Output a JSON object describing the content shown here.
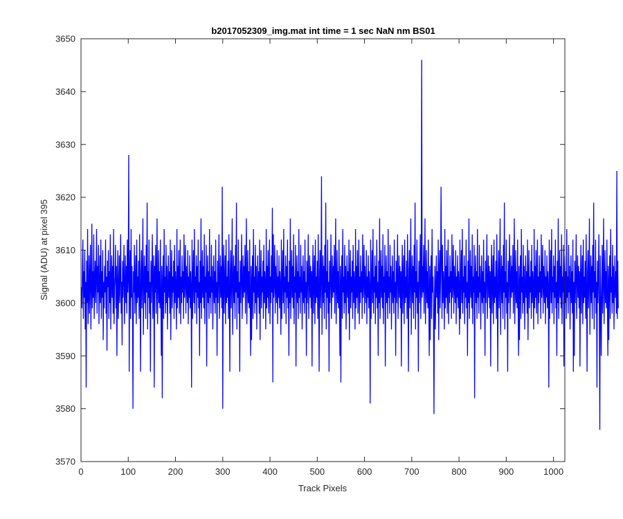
{
  "chart_data": {
    "type": "line",
    "title": "b2017052309_img.mat int time = 1 sec  NaN nm BS01",
    "xlabel": "Track Pixels",
    "ylabel": "Signal (ADU) at pixel 395",
    "xlim": [
      0,
      1024
    ],
    "ylim": [
      3570,
      3650
    ],
    "xticks": [
      0,
      100,
      200,
      300,
      400,
      500,
      600,
      700,
      800,
      900,
      1000
    ],
    "yticks": [
      3570,
      3580,
      3590,
      3600,
      3610,
      3620,
      3630,
      3640,
      3650
    ],
    "xtick_labels": [
      "0",
      "100",
      "200",
      "300",
      "400",
      "500",
      "600",
      "700",
      "800",
      "900",
      "1000"
    ],
    "ytick_labels": [
      "3570",
      "3580",
      "3590",
      "3600",
      "3610",
      "3620",
      "3630",
      "3640",
      "3650"
    ],
    "grid": false,
    "box": true,
    "series": [
      {
        "color": "#0000ff",
        "x_start": 1,
        "x_step": 1,
        "values": [
          3603,
          3599,
          3607,
          3612,
          3597,
          3606,
          3601,
          3610,
          3595,
          3604,
          3584,
          3608,
          3600,
          3614,
          3596,
          3602,
          3609,
          3598,
          3605,
          3611,
          3595,
          3603,
          3615,
          3599,
          3606,
          3601,
          3613,
          3597,
          3604,
          3608,
          3600,
          3605,
          3614,
          3598,
          3607,
          3602,
          3611,
          3596,
          3603,
          3609,
          3600,
          3612,
          3597,
          3606,
          3601,
          3610,
          3593,
          3604,
          3599,
          3607,
          3602,
          3612,
          3598,
          3605,
          3591,
          3608,
          3603,
          3610,
          3597,
          3606,
          3600,
          3613,
          3595,
          3604,
          3609,
          3601,
          3607,
          3598,
          3614,
          3596,
          3603,
          3605,
          3611,
          3599,
          3607,
          3590,
          3604,
          3610,
          3597,
          3602,
          3609,
          3600,
          3606,
          3613,
          3598,
          3604,
          3592,
          3608,
          3601,
          3605,
          3611,
          3596,
          3603,
          3609,
          3600,
          3607,
          3598,
          3612,
          3602,
          3605,
          3628,
          3587,
          3604,
          3610,
          3597,
          3614,
          3601,
          3607,
          3599,
          3580,
          3606,
          3602,
          3611,
          3598,
          3604,
          3609,
          3596,
          3612,
          3600,
          3605,
          3601,
          3608,
          3597,
          3613,
          3603,
          3587,
          3606,
          3610,
          3599,
          3605,
          3616,
          3594,
          3603,
          3609,
          3600,
          3607,
          3597,
          3611,
          3602,
          3619,
          3595,
          3606,
          3601,
          3612,
          3598,
          3604,
          3587,
          3608,
          3600,
          3605,
          3613,
          3597,
          3603,
          3609,
          3584,
          3607,
          3602,
          3611,
          3598,
          3605,
          3616,
          3596,
          3603,
          3610,
          3600,
          3606,
          3599,
          3612,
          3601,
          3590,
          3607,
          3582,
          3604,
          3609,
          3597,
          3614,
          3602,
          3605,
          3598,
          3611,
          3600,
          3607,
          3595,
          3603,
          3609,
          3601,
          3606,
          3598,
          3612,
          3593,
          3604,
          3610,
          3599,
          3605,
          3602,
          3608,
          3597,
          3611,
          3600,
          3606,
          3603,
          3595,
          3614,
          3599,
          3607,
          3601,
          3610,
          3598,
          3604,
          3612,
          3596,
          3605,
          3600,
          3609,
          3602,
          3606,
          3597,
          3613,
          3601,
          3604,
          3611,
          3598,
          3607,
          3603,
          3600,
          3610,
          3596,
          3605,
          3601,
          3609,
          3599,
          3606,
          3603,
          3584,
          3612,
          3597,
          3604,
          3610,
          3600,
          3614,
          3598,
          3605,
          3602,
          3609,
          3596,
          3607,
          3601,
          3612,
          3599,
          3604,
          3590,
          3608,
          3600,
          3616,
          3597,
          3603,
          3610,
          3601,
          3607,
          3599,
          3613,
          3596,
          3605,
          3602,
          3611,
          3588,
          3604,
          3609,
          3600,
          3606,
          3597,
          3614,
          3601,
          3605,
          3598,
          3611,
          3602,
          3607,
          3595,
          3603,
          3609,
          3600,
          3606,
          3598,
          3612,
          3601,
          3604,
          3590,
          3608,
          3600,
          3605,
          3613,
          3597,
          3603,
          3609,
          3601,
          3607,
          3599,
          3622,
          3580,
          3605,
          3611,
          3598,
          3604,
          3609,
          3596,
          3612,
          3600,
          3605,
          3601,
          3608,
          3597,
          3613,
          3603,
          3587,
          3606,
          3610,
          3599,
          3605,
          3616,
          3594,
          3603,
          3609,
          3600,
          3607,
          3597,
          3611,
          3602,
          3619,
          3595,
          3606,
          3601,
          3612,
          3598,
          3604,
          3587,
          3608,
          3600,
          3605,
          3613,
          3597,
          3603,
          3609,
          3601,
          3607,
          3602,
          3611,
          3598,
          3605,
          3616,
          3596,
          3603,
          3610,
          3600,
          3606,
          3599,
          3612,
          3601,
          3590,
          3607,
          3593,
          3604,
          3609,
          3597,
          3614,
          3602,
          3605,
          3598,
          3611,
          3600,
          3607,
          3595,
          3603,
          3609,
          3601,
          3606,
          3598,
          3612,
          3593,
          3604,
          3610,
          3599,
          3605,
          3602,
          3608,
          3597,
          3611,
          3600,
          3606,
          3603,
          3595,
          3614,
          3599,
          3607,
          3601,
          3610,
          3598,
          3604,
          3612,
          3596,
          3605,
          3600,
          3609,
          3602,
          3618,
          3585,
          3613,
          3601,
          3604,
          3611,
          3598,
          3607,
          3603,
          3600,
          3610,
          3596,
          3605,
          3601,
          3609,
          3599,
          3606,
          3603,
          3594,
          3612,
          3597,
          3604,
          3610,
          3600,
          3614,
          3598,
          3605,
          3602,
          3609,
          3596,
          3607,
          3601,
          3612,
          3599,
          3604,
          3590,
          3608,
          3600,
          3616,
          3597,
          3603,
          3610,
          3601,
          3607,
          3599,
          3613,
          3596,
          3605,
          3602,
          3611,
          3588,
          3604,
          3609,
          3600,
          3606,
          3597,
          3614,
          3601,
          3605,
          3598,
          3611,
          3602,
          3607,
          3595,
          3603,
          3609,
          3600,
          3606,
          3598,
          3612,
          3601,
          3604,
          3590,
          3608,
          3600,
          3605,
          3613,
          3597,
          3603,
          3609,
          3601,
          3607,
          3599,
          3606,
          3588,
          3605,
          3611,
          3598,
          3604,
          3609,
          3596,
          3612,
          3600,
          3605,
          3601,
          3608,
          3597,
          3613,
          3603,
          3587,
          3606,
          3610,
          3599,
          3605,
          3624,
          3594,
          3603,
          3609,
          3600,
          3607,
          3597,
          3611,
          3602,
          3619,
          3595,
          3606,
          3601,
          3612,
          3598,
          3604,
          3587,
          3608,
          3600,
          3605,
          3613,
          3597,
          3603,
          3609,
          3601,
          3607,
          3602,
          3611,
          3598,
          3605,
          3616,
          3596,
          3603,
          3610,
          3600,
          3606,
          3599,
          3612,
          3601,
          3590,
          3607,
          3585,
          3604,
          3609,
          3597,
          3614,
          3602,
          3605,
          3598,
          3611,
          3600,
          3607,
          3595,
          3603,
          3609,
          3601,
          3606,
          3598,
          3612,
          3593,
          3604,
          3610,
          3599,
          3605,
          3602,
          3608,
          3597,
          3611,
          3600,
          3606,
          3603,
          3595,
          3614,
          3599,
          3607,
          3601,
          3610,
          3598,
          3604,
          3612,
          3596,
          3605,
          3600,
          3609,
          3602,
          3606,
          3597,
          3613,
          3601,
          3604,
          3611,
          3598,
          3607,
          3603,
          3600,
          3610,
          3596,
          3605,
          3601,
          3609,
          3599,
          3606,
          3603,
          3581,
          3612,
          3597,
          3604,
          3610,
          3600,
          3614,
          3598,
          3605,
          3602,
          3609,
          3596,
          3607,
          3601,
          3612,
          3599,
          3604,
          3590,
          3608,
          3600,
          3616,
          3597,
          3603,
          3610,
          3601,
          3607,
          3599,
          3613,
          3596,
          3605,
          3602,
          3611,
          3588,
          3604,
          3609,
          3600,
          3606,
          3597,
          3614,
          3601,
          3605,
          3598,
          3611,
          3602,
          3607,
          3595,
          3603,
          3609,
          3600,
          3606,
          3598,
          3612,
          3601,
          3604,
          3590,
          3608,
          3600,
          3605,
          3613,
          3597,
          3603,
          3609,
          3601,
          3607,
          3599,
          3606,
          3588,
          3605,
          3611,
          3598,
          3604,
          3609,
          3596,
          3612,
          3600,
          3605,
          3601,
          3608,
          3597,
          3613,
          3603,
          3587,
          3606,
          3610,
          3599,
          3605,
          3616,
          3594,
          3603,
          3609,
          3600,
          3607,
          3597,
          3611,
          3602,
          3619,
          3595,
          3606,
          3601,
          3612,
          3598,
          3604,
          3587,
          3608,
          3600,
          3605,
          3613,
          3597,
          3603,
          3646,
          3601,
          3607,
          3602,
          3611,
          3598,
          3605,
          3616,
          3596,
          3603,
          3610,
          3600,
          3606,
          3599,
          3612,
          3601,
          3590,
          3607,
          3593,
          3604,
          3609,
          3597,
          3614,
          3602,
          3605,
          3598,
          3579,
          3600,
          3607,
          3595,
          3603,
          3609,
          3601,
          3606,
          3598,
          3612,
          3593,
          3604,
          3610,
          3599,
          3605,
          3622,
          3608,
          3597,
          3611,
          3600,
          3606,
          3603,
          3595,
          3614,
          3599,
          3607,
          3601,
          3610,
          3598,
          3604,
          3612,
          3596,
          3605,
          3600,
          3609,
          3602,
          3606,
          3597,
          3613,
          3601,
          3604,
          3611,
          3598,
          3607,
          3603,
          3600,
          3610,
          3596,
          3605,
          3601,
          3609,
          3599,
          3606,
          3603,
          3594,
          3612,
          3597,
          3604,
          3610,
          3600,
          3614,
          3598,
          3605,
          3602,
          3609,
          3596,
          3607,
          3601,
          3612,
          3599,
          3604,
          3590,
          3608,
          3600,
          3616,
          3597,
          3603,
          3610,
          3601,
          3607,
          3599,
          3613,
          3596,
          3605,
          3602,
          3611,
          3582,
          3604,
          3609,
          3600,
          3606,
          3597,
          3614,
          3601,
          3605,
          3598,
          3611,
          3602,
          3607,
          3595,
          3603,
          3609,
          3600,
          3606,
          3598,
          3612,
          3601,
          3604,
          3590,
          3608,
          3600,
          3605,
          3613,
          3597,
          3603,
          3609,
          3601,
          3607,
          3599,
          3606,
          3588,
          3605,
          3611,
          3598,
          3604,
          3609,
          3596,
          3612,
          3600,
          3605,
          3601,
          3608,
          3597,
          3613,
          3603,
          3587,
          3606,
          3610,
          3599,
          3605,
          3616,
          3594,
          3603,
          3609,
          3600,
          3607,
          3597,
          3611,
          3602,
          3619,
          3595,
          3606,
          3601,
          3612,
          3598,
          3604,
          3587,
          3608,
          3600,
          3605,
          3613,
          3597,
          3603,
          3609,
          3601,
          3607,
          3602,
          3611,
          3598,
          3605,
          3616,
          3596,
          3603,
          3610,
          3600,
          3606,
          3599,
          3612,
          3601,
          3590,
          3607,
          3593,
          3604,
          3609,
          3597,
          3614,
          3602,
          3605,
          3598,
          3611,
          3600,
          3607,
          3595,
          3603,
          3609,
          3601,
          3606,
          3598,
          3612,
          3593,
          3604,
          3610,
          3599,
          3605,
          3602,
          3608,
          3597,
          3611,
          3600,
          3606,
          3603,
          3595,
          3614,
          3599,
          3607,
          3601,
          3610,
          3598,
          3604,
          3612,
          3596,
          3605,
          3600,
          3609,
          3602,
          3606,
          3597,
          3613,
          3601,
          3604,
          3611,
          3598,
          3607,
          3603,
          3600,
          3610,
          3596,
          3605,
          3601,
          3609,
          3599,
          3606,
          3603,
          3584,
          3612,
          3597,
          3604,
          3610,
          3600,
          3614,
          3598,
          3605,
          3602,
          3609,
          3596,
          3607,
          3601,
          3612,
          3599,
          3604,
          3590,
          3608,
          3600,
          3616,
          3597,
          3603,
          3610,
          3601,
          3607,
          3599,
          3613,
          3596,
          3605,
          3602,
          3611,
          3588,
          3604,
          3609,
          3600,
          3606,
          3597,
          3614,
          3601,
          3605,
          3598,
          3611,
          3602,
          3607,
          3595,
          3603,
          3609,
          3600,
          3606,
          3598,
          3612,
          3587,
          3604,
          3590,
          3608,
          3600,
          3605,
          3613,
          3597,
          3603,
          3609,
          3601,
          3607,
          3599,
          3606,
          3588,
          3605,
          3611,
          3598,
          3604,
          3609,
          3596,
          3612,
          3600,
          3605,
          3601,
          3608,
          3597,
          3613,
          3603,
          3587,
          3606,
          3610,
          3599,
          3605,
          3616,
          3594,
          3603,
          3609,
          3600,
          3607,
          3597,
          3611,
          3602,
          3619,
          3595,
          3606,
          3601,
          3612,
          3598,
          3604,
          3584,
          3608,
          3600,
          3605,
          3613,
          3597,
          3576,
          3609,
          3601,
          3590,
          3602,
          3611,
          3598,
          3605,
          3616,
          3596,
          3603,
          3610,
          3600,
          3606,
          3599,
          3612,
          3601,
          3590,
          3607,
          3593,
          3604,
          3609,
          3597,
          3614,
          3602,
          3605,
          3598,
          3611,
          3600,
          3607,
          3595,
          3603,
          3609,
          3601,
          3606,
          3598,
          3625,
          3597,
          3608,
          3599
        ]
      }
    ]
  }
}
